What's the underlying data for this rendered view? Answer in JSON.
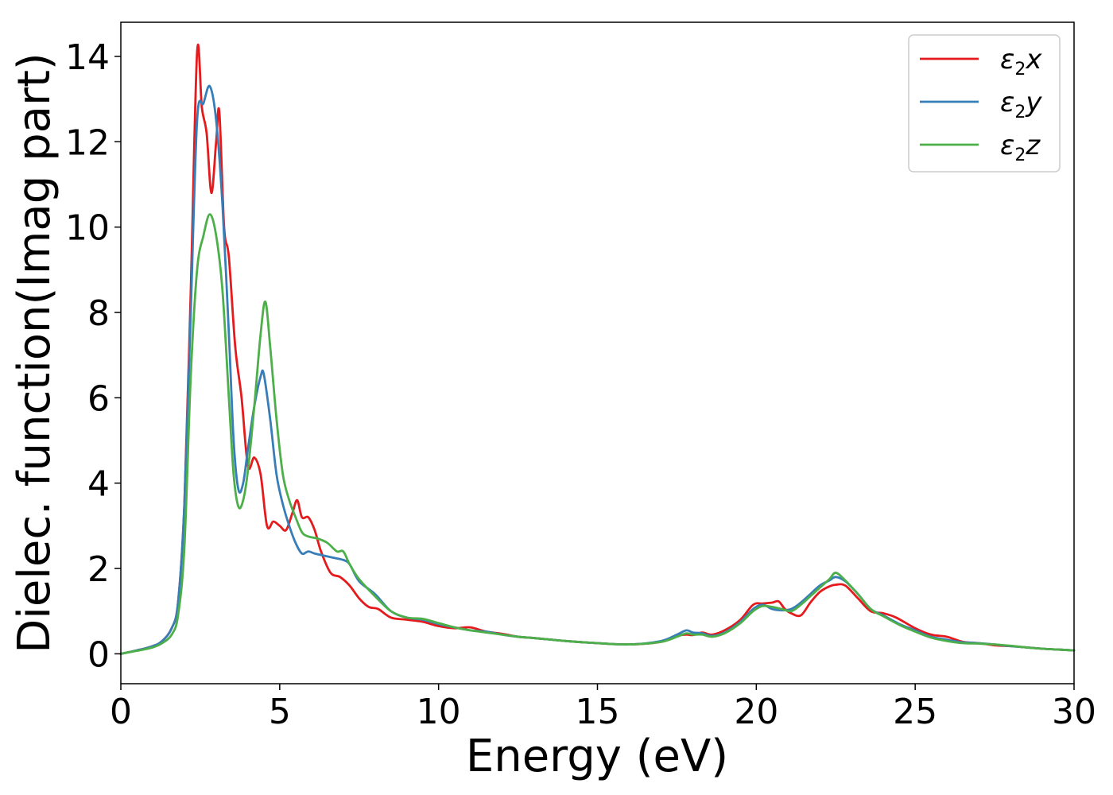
{
  "chart_data": {
    "type": "line",
    "title": "",
    "xlabel": "Energy (eV)",
    "ylabel": "Dielec. function(Imag part)",
    "xlim": [
      0,
      30
    ],
    "ylim": [
      -0.7,
      14.8
    ],
    "xticks": [
      0,
      5,
      10,
      15,
      20,
      25,
      30
    ],
    "yticks": [
      0,
      2,
      4,
      6,
      8,
      10,
      12,
      14
    ],
    "grid": false,
    "legend_position": "top-right",
    "series": [
      {
        "name": "ε2x",
        "legend_main": "ε",
        "legend_sub": "2",
        "legend_var": "x",
        "color": "#e41a1c",
        "x": [
          0,
          0.5,
          1.0,
          1.3,
          1.6,
          1.8,
          2.0,
          2.2,
          2.4,
          2.55,
          2.7,
          2.85,
          3.0,
          3.1,
          3.25,
          3.4,
          3.6,
          3.8,
          4.0,
          4.2,
          4.4,
          4.6,
          4.8,
          5.0,
          5.2,
          5.4,
          5.55,
          5.7,
          5.9,
          6.1,
          6.3,
          6.6,
          6.9,
          7.2,
          7.5,
          7.8,
          8.1,
          8.5,
          9.0,
          9.5,
          10.0,
          10.5,
          11.0,
          11.5,
          12.0,
          12.5,
          13.0,
          14.0,
          15.0,
          16.0,
          17.0,
          17.5,
          17.8,
          18.0,
          18.3,
          18.6,
          19.0,
          19.5,
          19.9,
          20.2,
          20.5,
          20.7,
          20.9,
          21.1,
          21.4,
          21.7,
          22.0,
          22.3,
          22.5,
          22.8,
          23.2,
          23.6,
          24.0,
          24.4,
          25.0,
          25.5,
          26.0,
          26.5,
          27.0,
          27.5,
          28.0,
          28.5,
          29.0,
          29.5,
          30.0
        ],
        "y": [
          0,
          0.08,
          0.18,
          0.3,
          0.6,
          1.2,
          3.5,
          8.5,
          14.1,
          12.8,
          12.2,
          10.8,
          12.0,
          12.7,
          10.0,
          9.3,
          7.2,
          6.0,
          4.4,
          4.6,
          4.2,
          3.0,
          3.1,
          3.0,
          2.9,
          3.3,
          3.6,
          3.2,
          3.2,
          2.9,
          2.4,
          1.9,
          1.8,
          1.6,
          1.3,
          1.1,
          1.05,
          0.85,
          0.8,
          0.75,
          0.65,
          0.6,
          0.62,
          0.52,
          0.47,
          0.4,
          0.37,
          0.3,
          0.25,
          0.22,
          0.28,
          0.42,
          0.45,
          0.44,
          0.5,
          0.45,
          0.55,
          0.8,
          1.15,
          1.18,
          1.2,
          1.23,
          1.05,
          0.95,
          0.9,
          1.2,
          1.45,
          1.58,
          1.62,
          1.6,
          1.3,
          1.0,
          0.95,
          0.85,
          0.6,
          0.45,
          0.4,
          0.28,
          0.25,
          0.2,
          0.18,
          0.15,
          0.12,
          0.1,
          0.08
        ]
      },
      {
        "name": "ε2y",
        "legend_main": "ε",
        "legend_sub": "2",
        "legend_var": "y",
        "color": "#377eb8",
        "x": [
          0,
          0.5,
          1.0,
          1.3,
          1.6,
          1.8,
          2.0,
          2.2,
          2.4,
          2.6,
          2.8,
          3.0,
          3.2,
          3.4,
          3.55,
          3.7,
          3.85,
          4.0,
          4.2,
          4.4,
          4.5,
          4.7,
          4.9,
          5.1,
          5.3,
          5.5,
          5.7,
          5.9,
          6.1,
          6.4,
          6.7,
          7.0,
          7.2,
          7.5,
          8.0,
          8.5,
          9.0,
          9.5,
          10.0,
          10.5,
          11.0,
          11.5,
          12.0,
          12.5,
          13.0,
          14.0,
          15.0,
          16.0,
          17.0,
          17.5,
          17.8,
          18.0,
          18.3,
          18.6,
          19.0,
          19.5,
          19.9,
          20.2,
          20.5,
          20.8,
          21.1,
          21.4,
          21.7,
          22.0,
          22.3,
          22.5,
          22.8,
          23.2,
          23.6,
          24.0,
          24.5,
          25.0,
          25.5,
          26.0,
          26.5,
          27.0,
          27.5,
          28.0,
          28.5,
          29.0,
          29.5,
          30.0
        ],
        "y": [
          0,
          0.08,
          0.18,
          0.3,
          0.6,
          1.2,
          3.5,
          8.0,
          12.5,
          12.9,
          13.3,
          12.5,
          10.5,
          7.5,
          5.0,
          3.85,
          4.0,
          4.8,
          5.8,
          6.5,
          6.55,
          5.5,
          4.2,
          3.5,
          3.0,
          2.6,
          2.35,
          2.4,
          2.35,
          2.3,
          2.25,
          2.2,
          2.1,
          1.7,
          1.4,
          1.0,
          0.85,
          0.8,
          0.7,
          0.62,
          0.55,
          0.52,
          0.45,
          0.4,
          0.37,
          0.3,
          0.25,
          0.22,
          0.3,
          0.45,
          0.55,
          0.5,
          0.48,
          0.42,
          0.5,
          0.75,
          1.05,
          1.15,
          1.05,
          1.02,
          1.05,
          1.2,
          1.4,
          1.6,
          1.72,
          1.8,
          1.7,
          1.4,
          1.05,
          0.9,
          0.7,
          0.55,
          0.4,
          0.33,
          0.27,
          0.25,
          0.22,
          0.18,
          0.15,
          0.12,
          0.1,
          0.08
        ]
      },
      {
        "name": "ε2z",
        "legend_main": "ε",
        "legend_sub": "2",
        "legend_var": "z",
        "color": "#4daf4a",
        "x": [
          0,
          0.5,
          1.0,
          1.3,
          1.6,
          1.8,
          2.0,
          2.2,
          2.4,
          2.6,
          2.8,
          3.0,
          3.2,
          3.4,
          3.55,
          3.7,
          3.85,
          4.0,
          4.2,
          4.4,
          4.55,
          4.7,
          4.9,
          5.1,
          5.3,
          5.5,
          5.7,
          5.9,
          6.2,
          6.5,
          6.8,
          7.0,
          7.2,
          7.5,
          8.0,
          8.5,
          9.0,
          9.5,
          10.0,
          10.5,
          11.0,
          11.5,
          12.0,
          12.5,
          13.0,
          14.0,
          15.0,
          16.0,
          17.0,
          17.5,
          17.8,
          18.0,
          18.3,
          18.6,
          19.0,
          19.5,
          19.9,
          20.2,
          20.5,
          20.8,
          21.1,
          21.4,
          21.7,
          22.0,
          22.3,
          22.5,
          22.8,
          23.2,
          23.6,
          24.0,
          24.5,
          25.0,
          25.5,
          26.0,
          26.5,
          27.0,
          27.5,
          28.0,
          28.5,
          29.0,
          29.5,
          30.0
        ],
        "y": [
          0,
          0.07,
          0.15,
          0.25,
          0.45,
          0.9,
          2.5,
          6.5,
          9.0,
          9.8,
          10.3,
          9.8,
          8.5,
          6.0,
          4.2,
          3.45,
          3.6,
          4.3,
          5.8,
          7.5,
          8.25,
          7.2,
          5.5,
          4.2,
          3.6,
          3.2,
          2.85,
          2.75,
          2.7,
          2.6,
          2.4,
          2.4,
          2.1,
          1.75,
          1.35,
          1.0,
          0.85,
          0.82,
          0.72,
          0.62,
          0.55,
          0.5,
          0.45,
          0.4,
          0.37,
          0.3,
          0.25,
          0.22,
          0.28,
          0.4,
          0.48,
          0.45,
          0.45,
          0.4,
          0.48,
          0.72,
          1.0,
          1.12,
          1.1,
          1.05,
          1.0,
          1.15,
          1.35,
          1.55,
          1.75,
          1.9,
          1.72,
          1.4,
          1.05,
          0.88,
          0.68,
          0.52,
          0.38,
          0.3,
          0.25,
          0.24,
          0.22,
          0.19,
          0.15,
          0.12,
          0.1,
          0.08
        ]
      }
    ]
  }
}
